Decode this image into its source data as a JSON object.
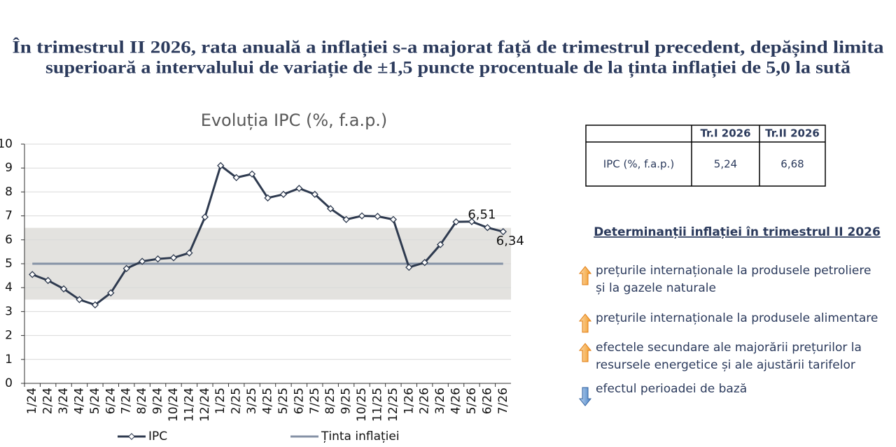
{
  "title": {
    "lines": [
      "În trimestrul II 2026, rata anuală a inflației s-a majorat față de trimestrul precedent, depășind limita",
      "superioară a intervalului de variație de ±1,5 puncte procentuale de la ținta inflației de 5,0 la sută"
    ]
  },
  "chart_data": {
    "type": "line",
    "title": "Evoluția IPC (%, f.a.p.)",
    "categories": [
      "1/24",
      "2/24",
      "3/24",
      "4/24",
      "5/24",
      "6/24",
      "7/24",
      "8/24",
      "9/24",
      "10/24",
      "11/24",
      "12/24",
      "1/25",
      "2/25",
      "3/25",
      "4/25",
      "5/25",
      "6/25",
      "7/25",
      "8/25",
      "9/25",
      "10/25",
      "11/25",
      "12/25",
      "1/26",
      "2/26",
      "3/26",
      "4/26",
      "5/26",
      "6/26",
      "7/26"
    ],
    "series": [
      {
        "name": "IPC",
        "color": "#2e3a4f",
        "marker": "diamond",
        "values": [
          4.55,
          4.3,
          3.95,
          3.5,
          3.28,
          3.78,
          4.8,
          5.1,
          5.2,
          5.25,
          5.45,
          6.95,
          9.1,
          8.6,
          8.75,
          7.75,
          7.9,
          8.15,
          7.9,
          7.3,
          6.85,
          7.0,
          6.98,
          6.85,
          4.85,
          5.05,
          5.8,
          6.75,
          6.76,
          6.51,
          6.34
        ],
        "value_labels": [
          null,
          null,
          null,
          null,
          null,
          null,
          null,
          null,
          null,
          null,
          null,
          null,
          null,
          null,
          null,
          null,
          null,
          null,
          null,
          null,
          null,
          null,
          null,
          null,
          null,
          null,
          null,
          null,
          null,
          "6,51",
          "6,34"
        ]
      },
      {
        "name": "Ținta inflației",
        "color": "#8592a6",
        "values": [
          5,
          5,
          5,
          5,
          5,
          5,
          5,
          5,
          5,
          5,
          5,
          5,
          5,
          5,
          5,
          5,
          5,
          5,
          5,
          5,
          5,
          5,
          5,
          5,
          5,
          5,
          5,
          5,
          5,
          5,
          5
        ]
      }
    ],
    "band": {
      "low": 3.5,
      "high": 6.5,
      "color": "#e3e2df"
    },
    "ylim": [
      0,
      10
    ],
    "yticks": [
      0,
      1,
      2,
      3,
      4,
      5,
      6,
      7,
      8,
      9,
      10
    ],
    "grid": true,
    "legend": "bottom"
  },
  "table": {
    "header": [
      "Tr.I 2026",
      "Tr.II 2026"
    ],
    "rows": [
      [
        "IPC (%, f.a.p.)",
        "5,24",
        "6,68"
      ]
    ]
  },
  "determinants": {
    "title": "Determinanții inflației în trimestrul II 2026",
    "items": [
      {
        "direction": "up",
        "lines": [
          "prețurile internaționale la produsele petroliere",
          "și la gazele naturale"
        ]
      },
      {
        "direction": "up",
        "lines": [
          "prețurile internaționale la produsele alimentare"
        ]
      },
      {
        "direction": "up",
        "lines": [
          "efectele secundare ale majorării prețurilor la",
          "resursele energetice și ale ajustării tarifelor"
        ]
      },
      {
        "direction": "down",
        "lines": [
          "efectul perioadei de bază"
        ]
      }
    ]
  }
}
